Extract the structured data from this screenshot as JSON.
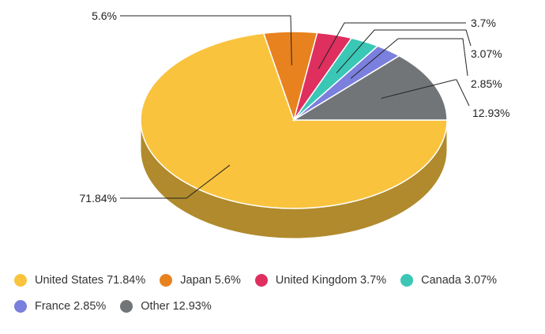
{
  "chart_data": {
    "type": "pie",
    "style": "3d",
    "slices": [
      {
        "name": "United States",
        "value": 71.84,
        "label": "71.84%",
        "legend": "United States 71.84%",
        "color": "#f9c33e",
        "side_color": "#b08a2c"
      },
      {
        "name": "Japan",
        "value": 5.6,
        "label": "5.6%",
        "legend": "Japan 5.6%",
        "color": "#e8821e",
        "side_color": "#a35b15"
      },
      {
        "name": "United Kingdom",
        "value": 3.7,
        "label": "3.7%",
        "legend": "United Kingdom 3.7%",
        "color": "#df2f5f",
        "side_color": "#9c2143"
      },
      {
        "name": "Canada",
        "value": 3.07,
        "label": "3.07%",
        "legend": "Canada 3.07%",
        "color": "#3ac7b5",
        "side_color": "#298b7f"
      },
      {
        "name": "France",
        "value": 2.85,
        "label": "2.85%",
        "legend": "France 2.85%",
        "color": "#7b7fdd",
        "side_color": "#56599b"
      },
      {
        "name": "Other",
        "value": 12.93,
        "label": "12.93%",
        "legend": "Other 12.93%",
        "color": "#717577",
        "side_color": "#4f5253"
      }
    ],
    "legend_position": "bottom"
  }
}
